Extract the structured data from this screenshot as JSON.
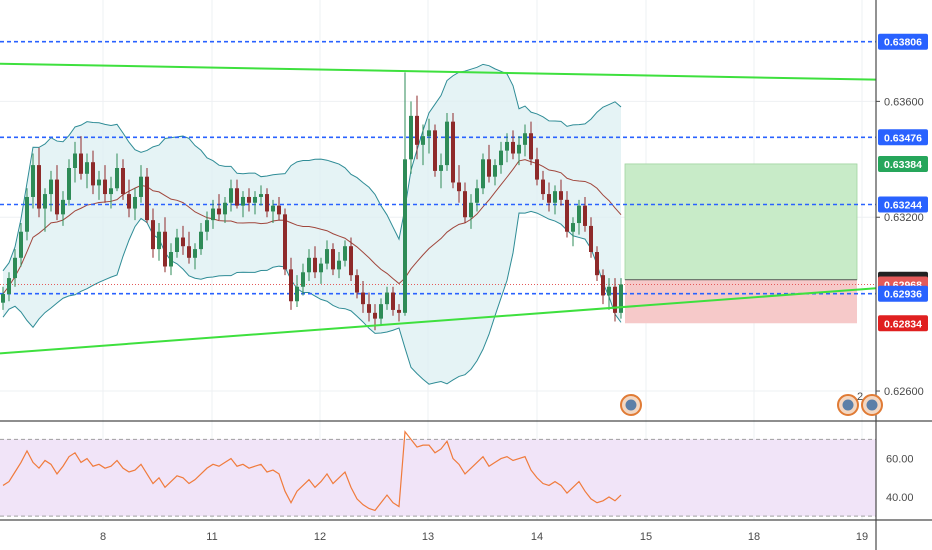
{
  "chart_data": [
    {
      "type": "candlestick",
      "title": "",
      "x_ticks": [
        "8",
        "11",
        "12",
        "13",
        "14",
        "15",
        "18",
        "19"
      ],
      "y_ticks": [
        "0.63600",
        "0.63200",
        "0.62600"
      ],
      "ylim": [
        0.625,
        0.6395
      ],
      "price_labels": [
        {
          "value": 0.63806,
          "text": "0.63806",
          "color": "#2962ff"
        },
        {
          "value": 0.63476,
          "text": "0.63476",
          "color": "#2962ff"
        },
        {
          "value": 0.63384,
          "text": "0.63384",
          "color": "#26a65b"
        },
        {
          "value": 0.63244,
          "text": "0.63244",
          "color": "#2962ff"
        },
        {
          "value": 0.62984,
          "text": "0.62984",
          "color": "#222222"
        },
        {
          "value": 0.62968,
          "text": "0.62968",
          "color": "#e45a5a"
        },
        {
          "value": 0.62936,
          "text": "0.62936",
          "color": "#2962ff"
        },
        {
          "value": 0.62834,
          "text": "0.62834",
          "color": "#e02020"
        }
      ],
      "horizontal_levels": [
        0.63806,
        0.63476,
        0.63244,
        0.62936
      ],
      "current_price": 0.62968,
      "trend_lines": [
        {
          "from": [
            0,
            0.6373
          ],
          "to": [
            1,
            0.63675
          ],
          "color": "#3ee03e"
        },
        {
          "from": [
            0,
            0.6273
          ],
          "to": [
            1,
            0.62955
          ],
          "color": "#3ee03e"
        }
      ],
      "position": {
        "entry": 0.62984,
        "take_profit": 0.63384,
        "stop_loss": 0.62834,
        "profit_color": "#c8ebc8",
        "loss_color": "#f6c9c9"
      },
      "candles": [
        [
          0.62905,
          0.6296,
          0.6288,
          0.62935
        ],
        [
          0.62935,
          0.6301,
          0.6291,
          0.6299
        ],
        [
          0.6299,
          0.6309,
          0.6296,
          0.6306
        ],
        [
          0.6306,
          0.6318,
          0.6303,
          0.6315
        ],
        [
          0.6315,
          0.633,
          0.6312,
          0.6327
        ],
        [
          0.6327,
          0.6342,
          0.6323,
          0.6338
        ],
        [
          0.6338,
          0.6344,
          0.632,
          0.6323
        ],
        [
          0.6323,
          0.633,
          0.6315,
          0.6328
        ],
        [
          0.6328,
          0.6336,
          0.6322,
          0.6333
        ],
        [
          0.6333,
          0.6338,
          0.6319,
          0.6321
        ],
        [
          0.6321,
          0.6329,
          0.6317,
          0.6326
        ],
        [
          0.6326,
          0.634,
          0.6324,
          0.6337
        ],
        [
          0.6337,
          0.6346,
          0.6332,
          0.6342
        ],
        [
          0.6342,
          0.6348,
          0.6333,
          0.6335
        ],
        [
          0.6335,
          0.6342,
          0.633,
          0.6339
        ],
        [
          0.6339,
          0.6343,
          0.6328,
          0.6331
        ],
        [
          0.6331,
          0.6336,
          0.6326,
          0.6333
        ],
        [
          0.6333,
          0.6338,
          0.6325,
          0.6328
        ],
        [
          0.6328,
          0.6334,
          0.6323,
          0.633
        ],
        [
          0.633,
          0.6342,
          0.6329,
          0.6337
        ],
        [
          0.6337,
          0.634,
          0.6326,
          0.6328
        ],
        [
          0.6328,
          0.6333,
          0.632,
          0.6323
        ],
        [
          0.6323,
          0.633,
          0.6319,
          0.6327
        ],
        [
          0.6327,
          0.6338,
          0.6325,
          0.6334
        ],
        [
          0.6334,
          0.6337,
          0.6318,
          0.6319
        ],
        [
          0.6319,
          0.6323,
          0.6306,
          0.6309
        ],
        [
          0.6309,
          0.6318,
          0.6305,
          0.6315
        ],
        [
          0.6315,
          0.632,
          0.6301,
          0.6303
        ],
        [
          0.6303,
          0.6311,
          0.63,
          0.6308
        ],
        [
          0.6308,
          0.6316,
          0.6306,
          0.6313
        ],
        [
          0.6313,
          0.6317,
          0.6307,
          0.631
        ],
        [
          0.631,
          0.6315,
          0.6304,
          0.6306
        ],
        [
          0.6306,
          0.6311,
          0.6302,
          0.6309
        ],
        [
          0.6309,
          0.6318,
          0.6307,
          0.6315
        ],
        [
          0.6315,
          0.6322,
          0.6312,
          0.6319
        ],
        [
          0.6319,
          0.6326,
          0.6316,
          0.6323
        ],
        [
          0.6323,
          0.6328,
          0.6319,
          0.6321
        ],
        [
          0.6321,
          0.6327,
          0.6318,
          0.6325
        ],
        [
          0.6325,
          0.6333,
          0.6322,
          0.633
        ],
        [
          0.633,
          0.6333,
          0.6323,
          0.6324
        ],
        [
          0.6324,
          0.6329,
          0.632,
          0.6327
        ],
        [
          0.6327,
          0.633,
          0.6322,
          0.6325
        ],
        [
          0.6325,
          0.6329,
          0.6321,
          0.6327
        ],
        [
          0.6327,
          0.6331,
          0.6324,
          0.6328
        ],
        [
          0.6328,
          0.633,
          0.632,
          0.6322
        ],
        [
          0.6322,
          0.6326,
          0.6318,
          0.6324
        ],
        [
          0.6324,
          0.6327,
          0.6319,
          0.6321
        ],
        [
          0.6321,
          0.6323,
          0.63,
          0.6302
        ],
        [
          0.6302,
          0.6306,
          0.6288,
          0.6291
        ],
        [
          0.6291,
          0.63,
          0.6289,
          0.6296
        ],
        [
          0.6296,
          0.6304,
          0.6293,
          0.6301
        ],
        [
          0.6301,
          0.6309,
          0.6298,
          0.6306
        ],
        [
          0.6306,
          0.631,
          0.6299,
          0.6301
        ],
        [
          0.6301,
          0.6306,
          0.6297,
          0.6304
        ],
        [
          0.6304,
          0.6312,
          0.6302,
          0.6309
        ],
        [
          0.6309,
          0.6311,
          0.63,
          0.6302
        ],
        [
          0.6302,
          0.6308,
          0.6299,
          0.6305
        ],
        [
          0.6305,
          0.6312,
          0.6303,
          0.631
        ],
        [
          0.631,
          0.6313,
          0.6298,
          0.63
        ],
        [
          0.63,
          0.6302,
          0.6292,
          0.6294
        ],
        [
          0.6294,
          0.6298,
          0.6287,
          0.629
        ],
        [
          0.629,
          0.6294,
          0.6284,
          0.6287
        ],
        [
          0.6287,
          0.629,
          0.6281,
          0.6285
        ],
        [
          0.6285,
          0.6292,
          0.6283,
          0.629
        ],
        [
          0.629,
          0.6296,
          0.6288,
          0.6294
        ],
        [
          0.6294,
          0.6296,
          0.6286,
          0.6288
        ],
        [
          0.6288,
          0.629,
          0.6284,
          0.6287
        ],
        [
          0.6287,
          0.637,
          0.6286,
          0.634
        ],
        [
          0.634,
          0.636,
          0.6335,
          0.6355
        ],
        [
          0.6355,
          0.6362,
          0.634,
          0.6345
        ],
        [
          0.6345,
          0.6352,
          0.6338,
          0.6348
        ],
        [
          0.6348,
          0.6354,
          0.6342,
          0.635
        ],
        [
          0.635,
          0.6352,
          0.6334,
          0.6336
        ],
        [
          0.6336,
          0.6342,
          0.633,
          0.6338
        ],
        [
          0.6338,
          0.6356,
          0.6336,
          0.6353
        ],
        [
          0.6353,
          0.6356,
          0.633,
          0.6332
        ],
        [
          0.6332,
          0.6338,
          0.6325,
          0.6329
        ],
        [
          0.6329,
          0.6332,
          0.6318,
          0.632
        ],
        [
          0.632,
          0.6328,
          0.6316,
          0.6325
        ],
        [
          0.6325,
          0.6333,
          0.6322,
          0.633
        ],
        [
          0.633,
          0.6342,
          0.6328,
          0.634
        ],
        [
          0.634,
          0.6345,
          0.6332,
          0.6334
        ],
        [
          0.6334,
          0.634,
          0.6331,
          0.6338
        ],
        [
          0.6338,
          0.6346,
          0.6335,
          0.6343
        ],
        [
          0.6343,
          0.6349,
          0.6339,
          0.6346
        ],
        [
          0.6346,
          0.635,
          0.634,
          0.6342
        ],
        [
          0.6342,
          0.6348,
          0.6338,
          0.6345
        ],
        [
          0.6345,
          0.6352,
          0.6341,
          0.6349
        ],
        [
          0.6349,
          0.6353,
          0.6338,
          0.634
        ],
        [
          0.634,
          0.6344,
          0.6331,
          0.6333
        ],
        [
          0.6333,
          0.6336,
          0.6326,
          0.6328
        ],
        [
          0.6328,
          0.6332,
          0.6322,
          0.6325
        ],
        [
          0.6325,
          0.6331,
          0.6321,
          0.6329
        ],
        [
          0.6329,
          0.6333,
          0.6324,
          0.6326
        ],
        [
          0.6326,
          0.6329,
          0.6313,
          0.6315
        ],
        [
          0.6315,
          0.632,
          0.631,
          0.6318
        ],
        [
          0.6318,
          0.6326,
          0.6314,
          0.6324
        ],
        [
          0.6324,
          0.6327,
          0.6315,
          0.6317
        ],
        [
          0.6317,
          0.632,
          0.6306,
          0.6308
        ],
        [
          0.6308,
          0.631,
          0.6298,
          0.63
        ],
        [
          0.63,
          0.6302,
          0.629,
          0.6293
        ],
        [
          0.6293,
          0.6299,
          0.6288,
          0.6296
        ],
        [
          0.6296,
          0.6299,
          0.6284,
          0.6287
        ],
        [
          0.6287,
          0.6299,
          0.6285,
          0.62968
        ]
      ],
      "rsi": {
        "y_ticks": [
          "60.00",
          "40.00"
        ],
        "ylim": [
          28,
          78
        ],
        "band": [
          70,
          30
        ],
        "color": "#f07b3c",
        "values": [
          46,
          48,
          53,
          58,
          64,
          58,
          55,
          59,
          57,
          52,
          56,
          61,
          63,
          58,
          60,
          56,
          57,
          55,
          56,
          59,
          55,
          53,
          54,
          57,
          52,
          47,
          50,
          45,
          48,
          51,
          50,
          47,
          49,
          52,
          55,
          57,
          56,
          58,
          60,
          56,
          57,
          55,
          56,
          57,
          53,
          54,
          52,
          43,
          37,
          43,
          46,
          49,
          45,
          48,
          52,
          47,
          50,
          53,
          45,
          39,
          36,
          34,
          33,
          37,
          41,
          37,
          35,
          74,
          70,
          66,
          67,
          67,
          63,
          65,
          69,
          60,
          57,
          52,
          55,
          58,
          61,
          56,
          58,
          60,
          61,
          59,
          60,
          61,
          54,
          50,
          47,
          46,
          48,
          46,
          42,
          45,
          48,
          43,
          39,
          37,
          38,
          40,
          38,
          41
        ]
      }
    }
  ]
}
